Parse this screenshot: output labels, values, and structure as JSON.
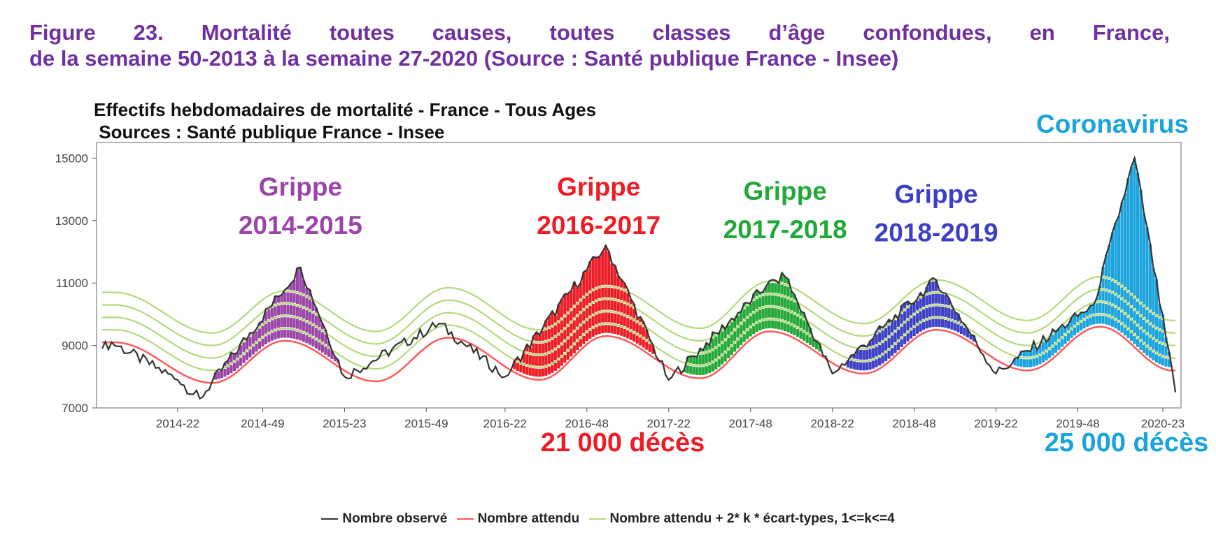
{
  "figure": {
    "line1": "Figure 23. Mortalité toutes causes, toutes classes d’âge confondues, en France,",
    "line2": "de la semaine 50-2013 à la semaine 27-2020 (Source : Santé publique France - Insee)"
  },
  "colors": {
    "figure_title": "#7030a0",
    "observed": "#333333",
    "expected": "#ff5a5a",
    "thresholds": "#b5d97a",
    "flu_2014_2015": "#9b45a8",
    "flu_2016_2017": "#ee1c25",
    "flu_2017_2018": "#22a838",
    "flu_2018_2019": "#3d3fc4",
    "coronavirus": "#1aa3dc"
  },
  "chart_data": {
    "type": "line",
    "title": "Effectifs hebdomadaires de mortalité  - France - Tous Ages",
    "subtitle": " Sources : Santé publique France - Insee",
    "xlabel": "",
    "ylabel": "",
    "ylim": [
      7000,
      15500
    ],
    "yticks": [
      7000,
      9000,
      11000,
      13000,
      15000
    ],
    "x_start_label": "2013-50",
    "x_end_label": "2020-27",
    "xticks": [
      "2014-22",
      "2014-49",
      "2015-23",
      "2015-49",
      "2016-22",
      "2016-48",
      "2017-22",
      "2017-48",
      "2018-22",
      "2018-48",
      "2019-22",
      "2019-48",
      "2020-23"
    ],
    "grid": false,
    "legend_position": "bottom",
    "legend": [
      "Nombre observé",
      "Nombre attendu",
      "Nombre attendu + 2* k * écart-types, 1<=k<=4"
    ],
    "expected_peaks": [
      {
        "week": "2014-02",
        "value": 9100
      },
      {
        "week": "2015-04",
        "value": 9150
      },
      {
        "week": "2016-04",
        "value": 9250
      },
      {
        "week": "2017-02",
        "value": 9300
      },
      {
        "week": "2018-02",
        "value": 9450
      },
      {
        "week": "2019-03",
        "value": 9500
      },
      {
        "week": "2020-03",
        "value": 9600
      }
    ],
    "expected_troughs": [
      {
        "week": "2014-33",
        "value": 7800
      },
      {
        "week": "2015-33",
        "value": 7850
      },
      {
        "week": "2016-33",
        "value": 7900
      },
      {
        "week": "2017-32",
        "value": 7950
      },
      {
        "week": "2018-32",
        "value": 8100
      },
      {
        "week": "2019-32",
        "value": 8200
      }
    ],
    "threshold_offsets": [
      400,
      800,
      1200,
      1600
    ],
    "observed_key_points": [
      {
        "week": "2013-50",
        "value": 8900
      },
      {
        "week": "2014-01",
        "value": 9100
      },
      {
        "week": "2014-22",
        "value": 7900
      },
      {
        "week": "2014-29",
        "value": 7300
      },
      {
        "week": "2015-09",
        "value": 11500
      },
      {
        "week": "2015-23",
        "value": 8000
      },
      {
        "week": "2016-01",
        "value": 9700
      },
      {
        "week": "2016-22",
        "value": 8000
      },
      {
        "week": "2017-02",
        "value": 12200
      },
      {
        "week": "2017-22",
        "value": 7900
      },
      {
        "week": "2018-01",
        "value": 10900
      },
      {
        "week": "2018-07",
        "value": 11200
      },
      {
        "week": "2018-22",
        "value": 8100
      },
      {
        "week": "2019-03",
        "value": 11100
      },
      {
        "week": "2019-22",
        "value": 8100
      },
      {
        "week": "2020-01",
        "value": 10300
      },
      {
        "week": "2020-14",
        "value": 15000
      },
      {
        "week": "2020-27",
        "value": 7500
      }
    ],
    "annotations": [
      {
        "label_line1": "Grippe",
        "label_line2": "2014-2015",
        "color_key": "flu_2014_2015",
        "peak_week": "2015-09",
        "peak_value": 11500
      },
      {
        "label_line1": "Grippe",
        "label_line2": "2016-2017",
        "color_key": "flu_2016_2017",
        "peak_week": "2017-02",
        "peak_value": 12200
      },
      {
        "label_line1": "Grippe",
        "label_line2": "2017-2018",
        "color_key": "flu_2017_2018",
        "peak_week": "2018-07",
        "peak_value": 11200
      },
      {
        "label_line1": "Grippe",
        "label_line2": "2018-2019",
        "color_key": "flu_2018_2019",
        "peak_week": "2019-03",
        "peak_value": 11100
      },
      {
        "label_line1": "Coronavirus",
        "label_line2": "",
        "color_key": "coronavirus",
        "peak_week": "2020-14",
        "peak_value": 15000
      }
    ],
    "totals": [
      {
        "text": "21 000 décès",
        "color_key": "flu_2016_2017"
      },
      {
        "text": "25 000 décès",
        "color_key": "coronavirus"
      }
    ]
  }
}
